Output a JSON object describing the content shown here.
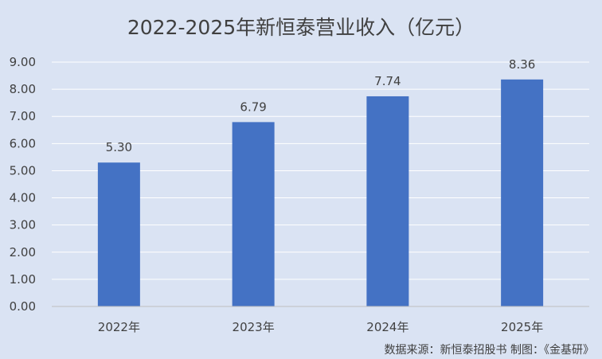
{
  "chart_data": {
    "type": "bar",
    "title": "2022-2025年新恒泰营业收入（亿元）",
    "categories": [
      "2022年",
      "2023年",
      "2024年",
      "2025年"
    ],
    "series": [
      {
        "values": [
          5.3,
          6.79,
          7.74,
          8.36
        ],
        "labels": [
          "5.30",
          "6.79",
          "7.74",
          "8.36"
        ]
      }
    ],
    "ylim": [
      0,
      9
    ],
    "yticks": [
      "0.00",
      "1.00",
      "2.00",
      "3.00",
      "4.00",
      "5.00",
      "6.00",
      "7.00",
      "8.00",
      "9.00"
    ],
    "grid": true,
    "xlabel": "",
    "ylabel": ""
  },
  "source_note": "数据来源：新恒泰招股书    制图：《金基研》",
  "colors": {
    "background": "#dae3f3",
    "bar": "#4472c4",
    "grid": "#ffffff",
    "text": "#404040"
  }
}
